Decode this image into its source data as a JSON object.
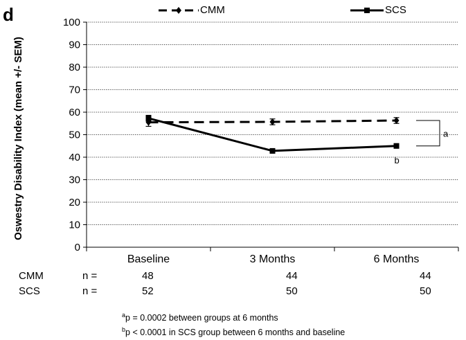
{
  "panel_letter": "d",
  "chart_data": {
    "type": "line",
    "categories": [
      "Baseline",
      "3 Months",
      "6 Months"
    ],
    "ylabel": "Oswestry Disability Index (mean +/- SEM)",
    "ylim": [
      0,
      100
    ],
    "yticks": [
      0,
      10,
      20,
      30,
      40,
      50,
      60,
      70,
      80,
      90,
      100
    ],
    "grid": "horizontal dotted",
    "legend_position": "top",
    "series": [
      {
        "name": "CMM",
        "values": [
          55.5,
          55.7,
          56.3
        ],
        "sem": [
          1.8,
          1.3,
          1.3
        ],
        "line_style": "dashed",
        "marker": "diamond",
        "color": "#000000"
      },
      {
        "name": "SCS",
        "values": [
          57.3,
          42.8,
          45.0
        ],
        "sem": [
          1.3,
          1.0,
          1.0
        ],
        "line_style": "solid",
        "marker": "square",
        "color": "#000000"
      }
    ],
    "annotations": [
      {
        "label": "a",
        "target": "between groups at 6 Months"
      },
      {
        "label": "b",
        "target": "SCS at 6 Months"
      }
    ]
  },
  "n_table": {
    "prefix": "n =",
    "rows": [
      {
        "group": "CMM",
        "values": [
          "48",
          "44",
          "44"
        ]
      },
      {
        "group": "SCS",
        "values": [
          "52",
          "50",
          "50"
        ]
      }
    ]
  },
  "footnotes": [
    {
      "mark": "a",
      "text": "p = 0.0002 between groups at 6 months"
    },
    {
      "mark": "b",
      "text": "p < 0.0001 in SCS group between 6 months and baseline"
    }
  ]
}
